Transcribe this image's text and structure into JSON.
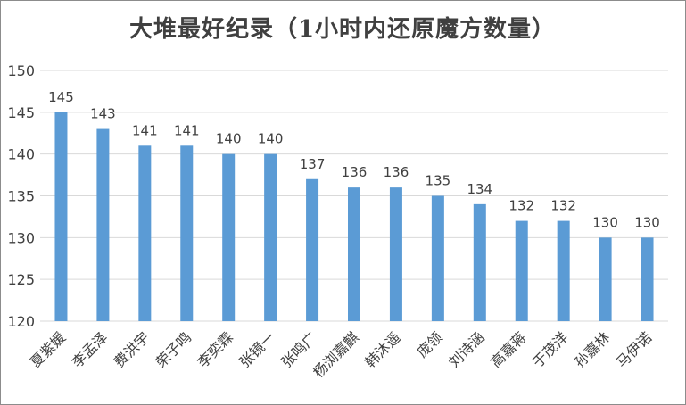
{
  "chart_data": {
    "type": "bar",
    "title": "大堆最好纪录（1小时内还原魔方数量）",
    "xlabel": "",
    "ylabel": "",
    "categories": [
      "夏紫媛",
      "李孟泽",
      "费洪宇",
      "荣子鸣",
      "李奕霖",
      "张镜一",
      "张鸣广",
      "杨浏嘉麒",
      "韩沐遥",
      "庞领",
      "刘诗涵",
      "高嘉蒋",
      "于茂洋",
      "孙嘉林",
      "马伊诺"
    ],
    "values": [
      145,
      143,
      141,
      141,
      140,
      140,
      137,
      136,
      136,
      135,
      134,
      132,
      132,
      130,
      130
    ],
    "ylim": [
      120,
      150
    ],
    "yticks": [
      120,
      125,
      130,
      135,
      140,
      145,
      150
    ],
    "grid": true,
    "legend": "none",
    "bar_color": "#5b9bd5",
    "grid_color": "#d9d9d9",
    "text_color": "#404040"
  }
}
